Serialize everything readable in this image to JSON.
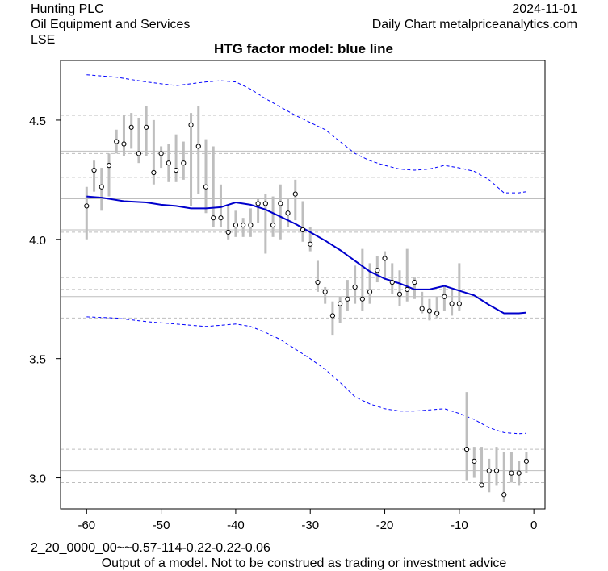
{
  "header": {
    "company": "Hunting PLC",
    "sector": "Oil Equipment and Services",
    "exchange": "LSE",
    "date": "2024-11-01",
    "source": "Daily Chart metalpriceanalytics.com"
  },
  "footer": {
    "model_code": "2_20_0000_00~~0.57-114-0.22-0.22-0.06",
    "disclaimer": "Output of a model. Not to be construed as trading or investment advice"
  },
  "chart_data": {
    "type": "line",
    "title": "HTG factor model: blue line",
    "xlabel": "",
    "ylabel": "",
    "xlim": [
      -63.5,
      1.5
    ],
    "ylim": [
      2.87,
      4.75
    ],
    "x_ticks": [
      -60,
      -50,
      -40,
      -30,
      -20,
      -10,
      0
    ],
    "x_tick_labels": [
      "-60",
      "-50",
      "-40",
      "-30",
      "-20",
      "-10",
      "0"
    ],
    "y_ticks": [
      3.0,
      3.5,
      4.0,
      4.5
    ],
    "y_tick_labels": [
      "3.0",
      "3.5",
      "4.0",
      "4.5"
    ],
    "colors": {
      "model": "#0000cc",
      "bands": "#0000ff",
      "price": "#bebebe",
      "grid": "#bebebe"
    },
    "solid_hlines": [
      3.03,
      3.76,
      4.04,
      4.17,
      4.37
    ],
    "dashed_hlines": [
      2.98,
      3.12,
      3.67,
      3.79,
      3.84,
      4.03,
      4.26,
      4.36,
      4.52
    ],
    "series": [
      {
        "name": "HTG factor model",
        "style": "solid",
        "x": [
          -60,
          -58,
          -55,
          -52,
          -50,
          -48,
          -46,
          -44,
          -42,
          -40,
          -38,
          -36,
          -34,
          -32,
          -30,
          -28,
          -26,
          -24,
          -22,
          -20,
          -18,
          -16,
          -14,
          -12,
          -10,
          -8,
          -6,
          -4,
          -2,
          -1
        ],
        "y": [
          4.18,
          4.175,
          4.16,
          4.155,
          4.145,
          4.14,
          4.13,
          4.13,
          4.135,
          4.155,
          4.145,
          4.125,
          4.095,
          4.065,
          4.03,
          3.995,
          3.955,
          3.91,
          3.865,
          3.835,
          3.815,
          3.79,
          3.79,
          3.805,
          3.785,
          3.765,
          3.725,
          3.69,
          3.69,
          3.693
        ]
      },
      {
        "name": "upper band",
        "style": "dashed",
        "x": [
          -60,
          -56,
          -52,
          -48,
          -44,
          -42,
          -40,
          -38,
          -36,
          -34,
          -32,
          -30,
          -28,
          -26,
          -24,
          -22,
          -20,
          -18,
          -16,
          -14,
          -12,
          -10,
          -8,
          -6,
          -4,
          -2,
          -1
        ],
        "y": [
          4.69,
          4.68,
          4.66,
          4.645,
          4.66,
          4.665,
          4.66,
          4.63,
          4.59,
          4.555,
          4.52,
          4.49,
          4.46,
          4.41,
          4.36,
          4.33,
          4.31,
          4.295,
          4.29,
          4.295,
          4.31,
          4.3,
          4.285,
          4.25,
          4.195,
          4.195,
          4.2
        ]
      },
      {
        "name": "lower band",
        "style": "dashed",
        "x": [
          -60,
          -56,
          -52,
          -48,
          -44,
          -42,
          -40,
          -38,
          -36,
          -34,
          -32,
          -30,
          -28,
          -26,
          -24,
          -22,
          -20,
          -18,
          -16,
          -14,
          -12,
          -10,
          -8,
          -6,
          -4,
          -2,
          -1
        ],
        "y": [
          3.675,
          3.67,
          3.655,
          3.645,
          3.635,
          3.64,
          3.645,
          3.635,
          3.61,
          3.58,
          3.54,
          3.5,
          3.455,
          3.4,
          3.34,
          3.31,
          3.29,
          3.28,
          3.28,
          3.285,
          3.29,
          3.27,
          3.245,
          3.21,
          3.19,
          3.185,
          3.187
        ]
      },
      {
        "name": "price",
        "style": "points-with-range",
        "x": [
          -60,
          -59,
          -58,
          -57,
          -56,
          -55,
          -54,
          -53,
          -52,
          -51,
          -50,
          -49,
          -48,
          -47,
          -46,
          -45,
          -44,
          -43,
          -42,
          -41,
          -40,
          -39,
          -38,
          -37,
          -36,
          -35,
          -34,
          -33,
          -32,
          -31,
          -30,
          -29,
          -28,
          -27,
          -26,
          -25,
          -24,
          -23,
          -22,
          -21,
          -20,
          -19,
          -18,
          -17,
          -16,
          -15,
          -14,
          -13,
          -12,
          -11,
          -10,
          -9,
          -8,
          -7,
          -6,
          -5,
          -4,
          -3,
          -2,
          -1
        ],
        "y": [
          4.14,
          4.29,
          4.22,
          4.31,
          4.41,
          4.4,
          4.47,
          4.36,
          4.47,
          4.28,
          4.36,
          4.32,
          4.29,
          4.32,
          4.48,
          4.39,
          4.22,
          4.09,
          4.09,
          4.03,
          4.06,
          4.06,
          4.06,
          4.15,
          4.15,
          4.06,
          4.15,
          4.11,
          4.19,
          4.04,
          3.98,
          3.82,
          3.78,
          3.68,
          3.73,
          3.75,
          3.8,
          3.75,
          3.78,
          3.87,
          3.92,
          3.82,
          3.77,
          3.79,
          3.82,
          3.71,
          3.7,
          3.69,
          3.76,
          3.73,
          3.73,
          3.12,
          3.07,
          2.97,
          3.03,
          3.03,
          2.93,
          3.02,
          3.02,
          3.07
        ],
        "low": [
          4.0,
          4.2,
          4.12,
          4.18,
          4.36,
          4.35,
          4.38,
          4.32,
          4.35,
          4.23,
          4.3,
          4.24,
          4.24,
          4.25,
          4.14,
          4.19,
          4.11,
          4.05,
          4.05,
          4.0,
          4.01,
          4.01,
          4.01,
          4.07,
          3.94,
          4.01,
          4.0,
          4.05,
          4.08,
          3.99,
          3.95,
          3.78,
          3.73,
          3.6,
          3.65,
          3.7,
          3.73,
          3.7,
          3.73,
          3.82,
          3.83,
          3.77,
          3.72,
          3.74,
          3.75,
          3.69,
          3.66,
          3.67,
          3.7,
          3.68,
          3.7,
          2.99,
          3.0,
          2.96,
          2.94,
          2.97,
          2.9,
          2.98,
          2.97,
          3.02
        ],
        "high": [
          4.22,
          4.33,
          4.3,
          4.36,
          4.46,
          4.52,
          4.53,
          4.51,
          4.56,
          4.5,
          4.39,
          4.4,
          4.44,
          4.41,
          4.53,
          4.56,
          4.42,
          4.39,
          4.23,
          4.14,
          4.12,
          4.09,
          4.13,
          4.17,
          4.19,
          4.18,
          4.23,
          4.17,
          4.25,
          4.16,
          4.05,
          3.91,
          3.8,
          3.74,
          3.76,
          3.83,
          3.89,
          3.96,
          3.9,
          3.93,
          3.95,
          3.9,
          3.87,
          3.96,
          3.84,
          3.78,
          3.75,
          3.76,
          3.81,
          3.79,
          3.9,
          3.36,
          3.13,
          3.13,
          3.08,
          3.13,
          3.11,
          3.11,
          3.07,
          3.11
        ]
      }
    ]
  }
}
